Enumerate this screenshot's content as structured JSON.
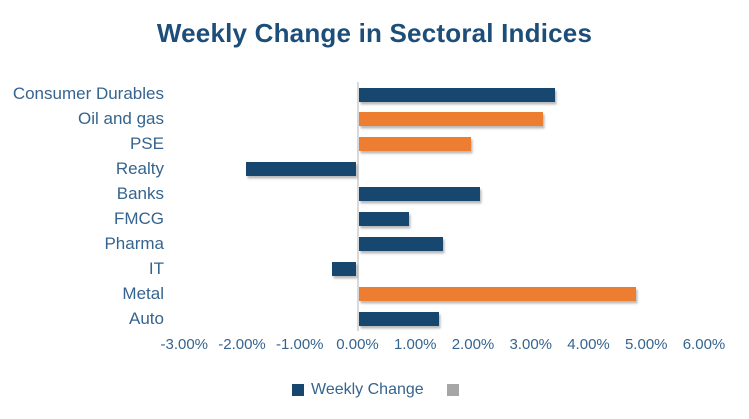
{
  "title": "Weekly Change in Sectoral Indices",
  "colors": {
    "navy": "#17466f",
    "orange": "#ed7d31",
    "title": "#1d4e79",
    "axis_text": "#36648f",
    "zero_line": "#d9d9d9",
    "legend_gray": "#a6a6a6",
    "background": "#ffffff"
  },
  "chart_data": {
    "type": "bar",
    "orientation": "horizontal",
    "title": "Weekly Change in Sectoral Indices",
    "categories": [
      "Consumer Durables",
      "Oil and gas",
      "PSE",
      "Realty",
      "Banks",
      "FMCG",
      "Pharma",
      "IT",
      "Metal",
      "Auto"
    ],
    "series": [
      {
        "name": "Weekly Change",
        "values": [
          3.4,
          3.2,
          1.95,
          -1.92,
          2.1,
          0.88,
          1.47,
          -0.43,
          4.8,
          1.39
        ],
        "point_colors": [
          "#17466f",
          "#ed7d31",
          "#ed7d31",
          "#17466f",
          "#17466f",
          "#17466f",
          "#17466f",
          "#17466f",
          "#ed7d31",
          "#17466f"
        ]
      }
    ],
    "value_unit": "percent",
    "xlim": [
      -3,
      6
    ],
    "x_tick_values": [
      -3,
      -2,
      -1,
      0,
      1,
      2,
      3,
      4,
      5,
      6
    ],
    "x_tick_labels": [
      "-3.00%",
      "-2.00%",
      "-1.00%",
      "0.00%",
      "1.00%",
      "2.00%",
      "3.00%",
      "4.00%",
      "5.00%",
      "6.00%"
    ],
    "grid": "none",
    "legend_position": "bottom",
    "legend": [
      {
        "label": "Weekly Change",
        "color": "#17466f"
      },
      {
        "label": "",
        "color": "#a6a6a6"
      }
    ]
  }
}
